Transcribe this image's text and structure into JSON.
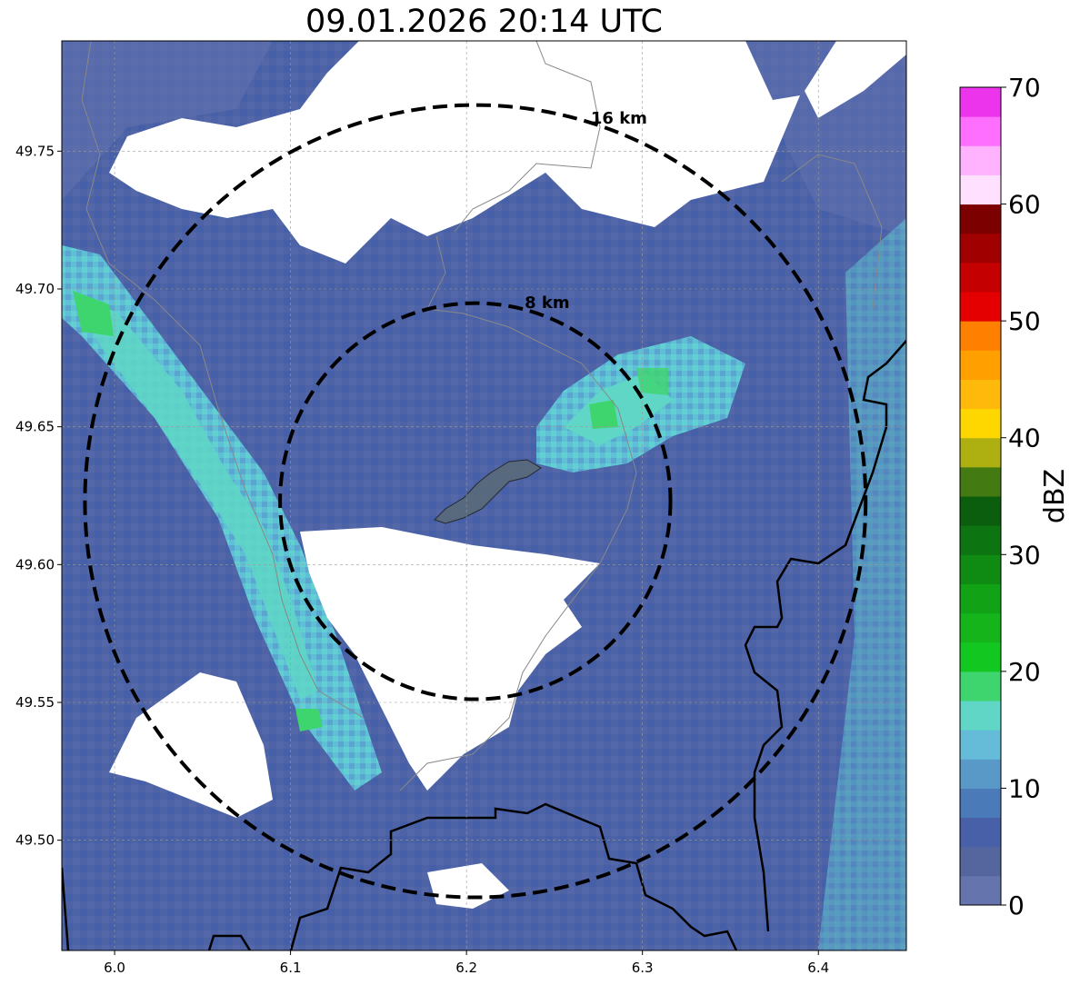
{
  "title": "09.01.2026 20:14 UTC",
  "map": {
    "lon_range": [
      5.97,
      6.45
    ],
    "lat_range": [
      49.46,
      49.79
    ],
    "x_ticks": [
      6.0,
      6.1,
      6.2,
      6.3,
      6.4
    ],
    "x_tick_labels": [
      "6.0",
      "6.1",
      "6.2",
      "6.3",
      "6.4"
    ],
    "y_ticks": [
      49.5,
      49.55,
      49.6,
      49.65,
      49.7,
      49.75
    ],
    "y_tick_labels": [
      "49.50",
      "49.55",
      "49.60",
      "49.65",
      "49.70",
      "49.75"
    ],
    "grid": true,
    "center": {
      "lon": 6.205,
      "lat": 49.623
    },
    "rings": [
      {
        "label": "8 km",
        "radius_km": 8
      },
      {
        "label": "16 km",
        "radius_km": 16
      }
    ]
  },
  "colorbar": {
    "label": "dBZ",
    "min": 0,
    "max": 70,
    "tick_values": [
      0,
      10,
      20,
      30,
      40,
      50,
      60,
      70
    ],
    "tick_labels": [
      "0",
      "10",
      "20",
      "30",
      "40",
      "50",
      "60",
      "70"
    ],
    "colors": [
      "#6574ad",
      "#55669f",
      "#4760a8",
      "#4a7bb8",
      "#5999c8",
      "#64bcd8",
      "#5fd6c6",
      "#3ed56e",
      "#13c721",
      "#14b41a",
      "#12a216",
      "#0f8a12",
      "#0c7410",
      "#0b5e0d",
      "#437a11",
      "#aeb012",
      "#ffd700",
      "#ffb90b",
      "#ff9f00",
      "#ff7f00",
      "#e40000",
      "#c40000",
      "#a00000",
      "#7c0000",
      "#ffe0ff",
      "#ffb3ff",
      "#ff6fff",
      "#ec34ec"
    ]
  },
  "colors": {
    "no_data": "#ffffff",
    "outside_light": "#6574ad",
    "base": "#4a62a5",
    "cyan_band": "#5fc3d8",
    "teal": "#5fd6c6",
    "green": "#3ed56e",
    "city": "#5a6a7a"
  }
}
